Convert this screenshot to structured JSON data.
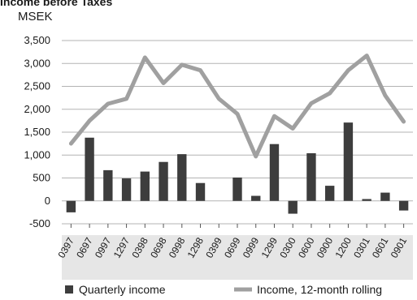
{
  "chart_data": {
    "type": "bar+line",
    "title": "Income before Taxes",
    "unit_label": "MSEK",
    "categories": [
      "0397",
      "0697",
      "0997",
      "1297",
      "0398",
      "0698",
      "0998",
      "1298",
      "0399",
      "0699",
      "0999",
      "1299",
      "0300",
      "0600",
      "0900",
      "1200",
      "0301",
      "0601",
      "0901"
    ],
    "series": [
      {
        "name": "Quarterly income",
        "type": "bar",
        "color": "#3d3d3d",
        "values": [
          -250,
          1380,
          670,
          490,
          640,
          850,
          1020,
          390,
          0,
          510,
          110,
          1240,
          -280,
          1040,
          330,
          1710,
          40,
          180,
          -210
        ]
      },
      {
        "name": "Income, 12-month rolling",
        "type": "line",
        "color": "#a0a0a0",
        "values": [
          1250,
          1750,
          2120,
          2230,
          3130,
          2570,
          2970,
          2850,
          2230,
          1900,
          970,
          1850,
          1580,
          2130,
          2350,
          2850,
          3170,
          2300,
          1730
        ]
      }
    ],
    "yticks": [
      "3,500",
      "3,000",
      "2,500",
      "2,000",
      "1,500",
      "1,000",
      "500",
      "0",
      "-500"
    ],
    "ytick_values": [
      3500,
      3000,
      2500,
      2000,
      1500,
      1000,
      500,
      0,
      -500
    ],
    "ylim": [
      -500,
      3500
    ],
    "grid": true,
    "legend_position": "bottom"
  }
}
